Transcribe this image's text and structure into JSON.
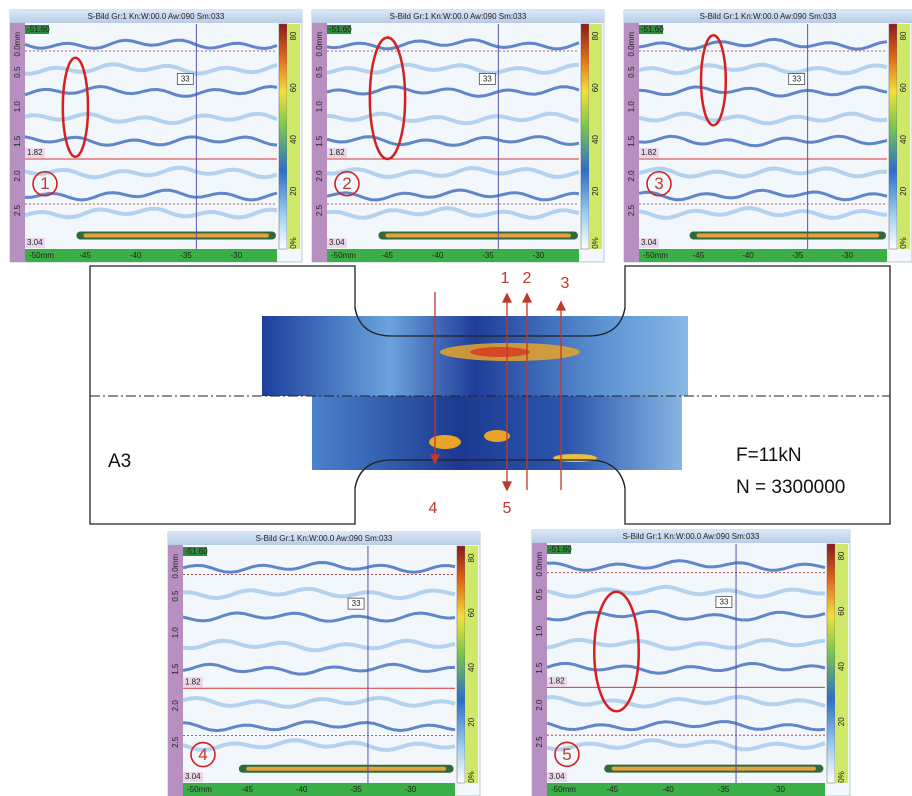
{
  "panels": [
    {
      "header": "S-Bild Gr:1 Kn:W:00.0 Aw:090 Sm:033",
      "number": "1",
      "top_value": "-51.60",
      "gate_value": "1.82",
      "bottom_value": "3.04",
      "marker": "33",
      "depth_labels": [
        "0.0mm",
        "0.5",
        "1.0",
        "1.5",
        "2.0",
        "2.5"
      ],
      "x_labels": [
        "-50mm",
        "-45",
        "-40",
        "-35",
        "-30"
      ],
      "scale_labels": [
        "80",
        "60",
        "40",
        "20",
        "0%"
      ]
    },
    {
      "header": "S-Bild Gr:1 Kn:W:00.0 Aw:090 Sm:033",
      "number": "2",
      "top_value": "-51.60",
      "gate_value": "1.82",
      "bottom_value": "3.04",
      "marker": "33",
      "depth_labels": [
        "0.0mm",
        "0.5",
        "1.0",
        "1.5",
        "2.0",
        "2.5"
      ],
      "x_labels": [
        "-50mm",
        "-45",
        "-40",
        "-35",
        "-30"
      ],
      "scale_labels": [
        "80",
        "60",
        "40",
        "20",
        "0%"
      ]
    },
    {
      "header": "S-Bild Gr:1 Kn:W:00.0 Aw:090 Sm:033",
      "number": "3",
      "top_value": "-51.60",
      "gate_value": "1.82",
      "bottom_value": "3.04",
      "marker": "33",
      "depth_labels": [
        "0.0mm",
        "0.5",
        "1.0",
        "1.5",
        "2.0",
        "2.5"
      ],
      "x_labels": [
        "-50mm",
        "-45",
        "-40",
        "-35",
        "-30"
      ],
      "scale_labels": [
        "80",
        "60",
        "40",
        "20",
        "0%"
      ]
    },
    {
      "header": "S-Bild Gr:1 Kn:W:00.0 Aw:090 Sm:033",
      "number": "4",
      "top_value": "-51.60",
      "gate_value": "1.82",
      "bottom_value": "3.04",
      "marker": "33",
      "depth_labels": [
        "0.0mm",
        "0.5",
        "1.0",
        "1.5",
        "2.0",
        "2.5"
      ],
      "x_labels": [
        "-50mm",
        "-45",
        "-40",
        "-35",
        "-30"
      ],
      "scale_labels": [
        "80",
        "60",
        "40",
        "20",
        "0%"
      ]
    },
    {
      "header": "S-Bild Gr:1 Kn:W:00.0 Aw:090 Sm:033",
      "number": "5",
      "top_value": "-51.60",
      "gate_value": "1.82",
      "bottom_value": "3.04",
      "marker": "33",
      "depth_labels": [
        "0.0mm",
        "0.5",
        "1.0",
        "1.5",
        "2.0",
        "2.5"
      ],
      "x_labels": [
        "-50mm",
        "-45",
        "-40",
        "-35",
        "-30"
      ],
      "scale_labels": [
        "80",
        "60",
        "40",
        "20",
        "0%"
      ]
    }
  ],
  "specimen": {
    "label": "A3",
    "force": "F=11kN",
    "cycles": "N = 3300000",
    "top_arrows": [
      "1",
      "2",
      "3"
    ],
    "bottom_arrows": [
      "4",
      "5"
    ]
  }
}
